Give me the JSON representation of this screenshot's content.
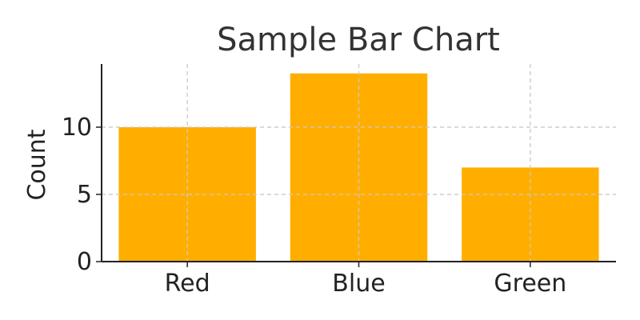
{
  "chart_data": {
    "type": "bar",
    "title": "Sample Bar Chart",
    "xlabel": "",
    "ylabel": "Count",
    "categories": [
      "Red",
      "Blue",
      "Green"
    ],
    "values": [
      10,
      14,
      7
    ],
    "ylim": [
      0,
      14.7
    ],
    "yticks": [
      0,
      5,
      10
    ],
    "grid": true,
    "bar_color": "#ffae00"
  }
}
